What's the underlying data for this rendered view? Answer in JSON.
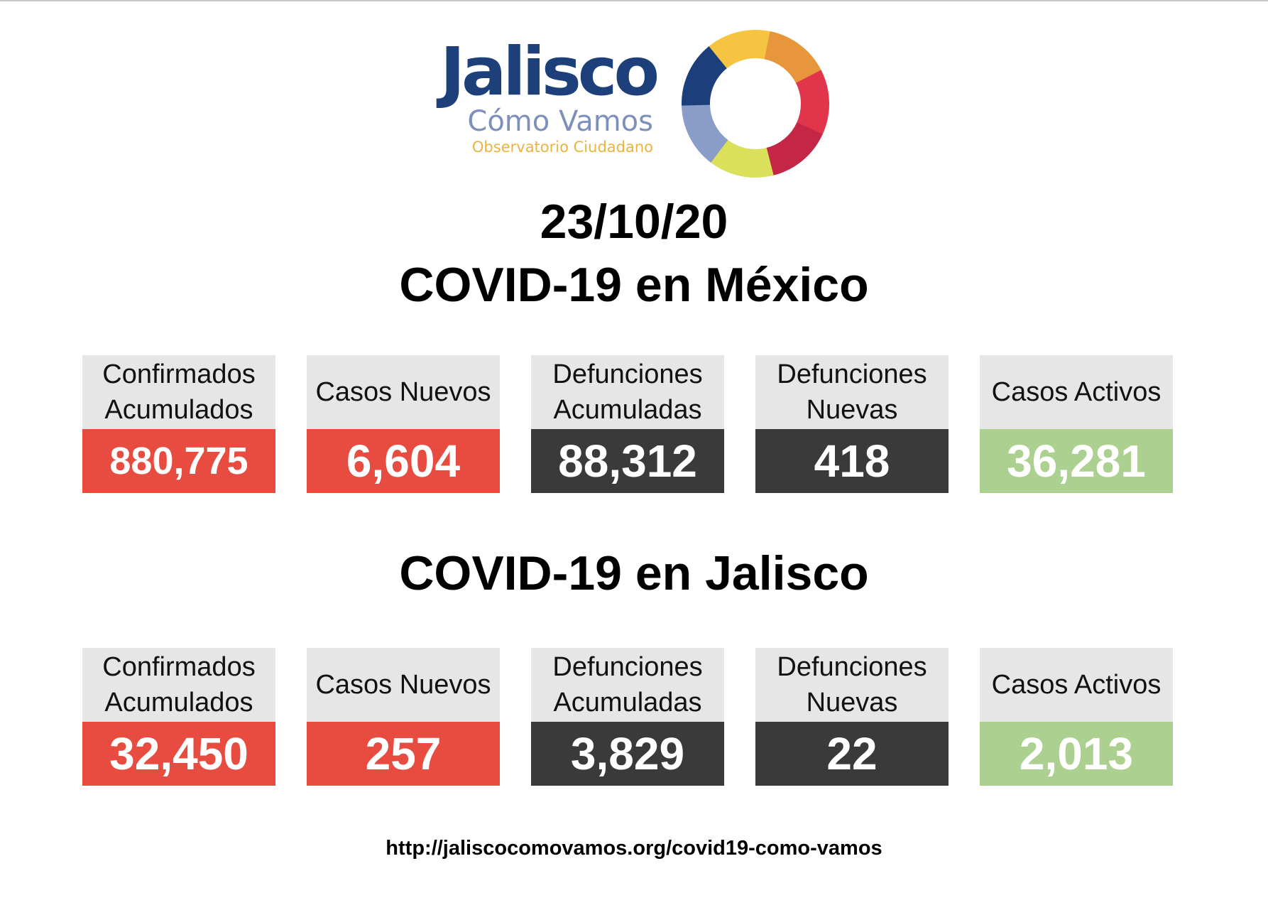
{
  "colors": {
    "red": "#e84b40",
    "dark": "#3a3a3a",
    "green": "#acd08f",
    "label_bg": "#e6e6e6"
  },
  "logo": {
    "main": "Jalisco",
    "sub": "Cómo Vamos",
    "tagline": "Observatorio Ciudadano",
    "ring_colors": [
      "#f5c542",
      "#e8963c",
      "#e0354a",
      "#c42645",
      "#dbe05b",
      "#8a9cc8",
      "#1c3f7b"
    ]
  },
  "date": "23/10/20",
  "sections": {
    "mexico": {
      "title": "COVID-19 en México",
      "cards": [
        {
          "label": "Confirmados\nAcumulados",
          "value": "880,775",
          "color": "#e84b40"
        },
        {
          "label": "Casos Nuevos",
          "value": "6,604",
          "color": "#e84b40"
        },
        {
          "label": "Defunciones\nAcumuladas",
          "value": "88,312",
          "color": "#3a3a3a"
        },
        {
          "label": "Defunciones\nNuevas",
          "value": "418",
          "color": "#3a3a3a"
        },
        {
          "label": "Casos Activos",
          "value": "36,281",
          "color": "#acd08f"
        }
      ]
    },
    "jalisco": {
      "title": "COVID-19 en Jalisco",
      "cards": [
        {
          "label": "Confirmados\nAcumulados",
          "value": "32,450",
          "color": "#e84b40"
        },
        {
          "label": "Casos Nuevos",
          "value": "257",
          "color": "#e84b40"
        },
        {
          "label": "Defunciones\nAcumuladas",
          "value": "3,829",
          "color": "#3a3a3a"
        },
        {
          "label": "Defunciones\nNuevas",
          "value": "22",
          "color": "#3a3a3a"
        },
        {
          "label": "Casos Activos",
          "value": "2,013",
          "color": "#acd08f"
        }
      ]
    }
  },
  "footer_url": "http://jaliscocomovamos.org/covid19-como-vamos"
}
